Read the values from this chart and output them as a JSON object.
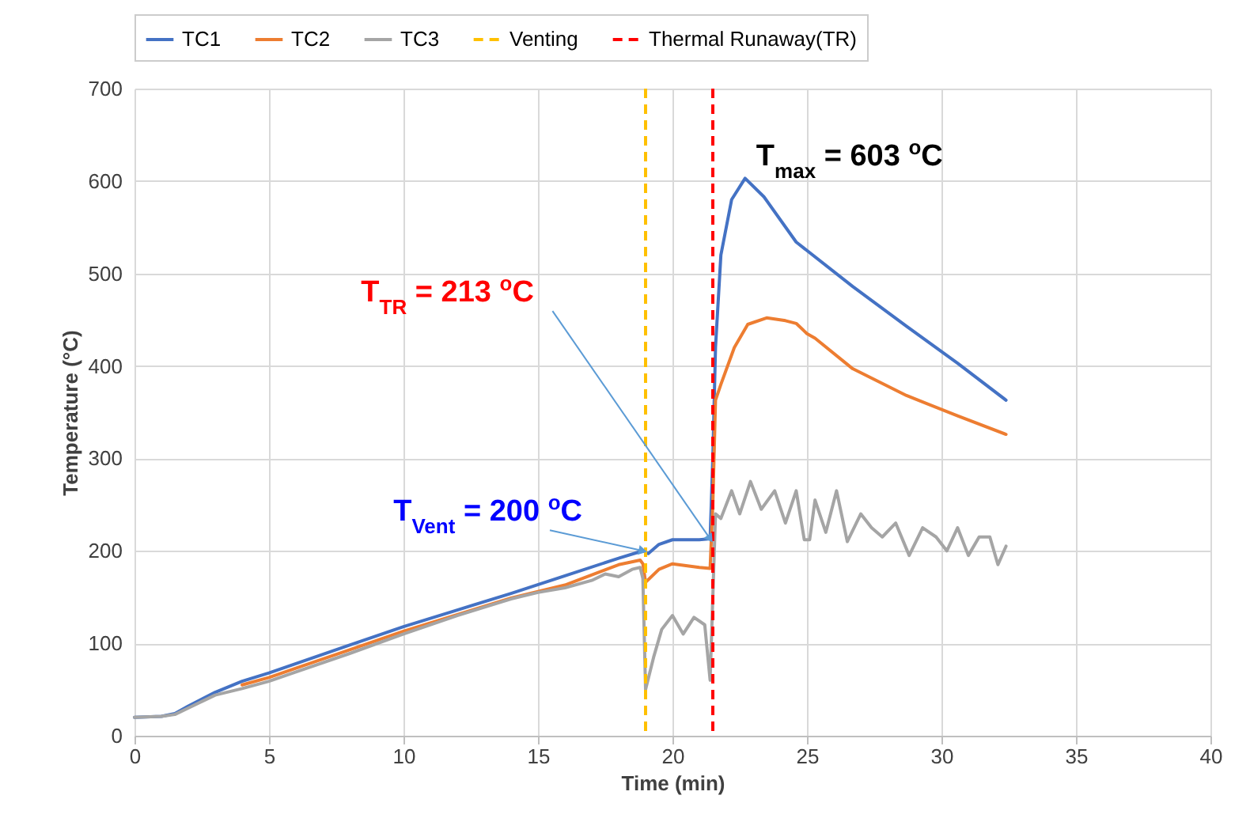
{
  "chart_data": {
    "type": "line",
    "xlabel": "Time (min)",
    "ylabel": "Temperature (°C)",
    "xlim": [
      0,
      40
    ],
    "xticks": [
      0,
      5,
      10,
      15,
      20,
      25,
      30,
      35,
      40
    ],
    "ylim": [
      0,
      700
    ],
    "yticks": [
      0,
      100,
      200,
      300,
      400,
      500,
      600,
      700
    ],
    "grid": true,
    "legend": "top",
    "marker": "none",
    "line_style": "solid",
    "series": [
      {
        "name": "TC1",
        "color": "#4472c4",
        "x": [
          0,
          1,
          1.5,
          2,
          3,
          4,
          5,
          6,
          8,
          10,
          12,
          14,
          16,
          18,
          18.9,
          19.1,
          19.5,
          20,
          21,
          21.4,
          21.5,
          21.6,
          21.8,
          22.2,
          22.7,
          23.4,
          24.6,
          26.7,
          28.7,
          30.6,
          32.4
        ],
        "values": [
          20,
          21,
          24,
          32,
          47,
          59,
          68,
          78,
          98,
          118,
          136,
          154,
          173,
          192,
          200,
          197,
          207,
          212,
          212,
          213,
          300,
          420,
          520,
          580,
          603,
          583,
          534,
          486,
          443,
          403,
          363
        ]
      },
      {
        "name": "TC2",
        "color": "#ed7d31",
        "x": [
          4,
          5,
          6,
          8,
          10,
          12,
          14,
          16,
          18,
          18.8,
          18.9,
          19.0,
          19.5,
          20,
          21,
          21.4,
          21.5,
          21.6,
          21.8,
          22.3,
          22.8,
          23.5,
          24.2,
          24.6,
          25,
          25.3,
          26.7,
          28.7,
          30.6,
          32.4
        ],
        "values": [
          55,
          63,
          73,
          93,
          113,
          131,
          149,
          163,
          185,
          190,
          186,
          166,
          180,
          186,
          182,
          181,
          250,
          363,
          380,
          420,
          445,
          452,
          449,
          446,
          435,
          430,
          397,
          368,
          346,
          326
        ]
      },
      {
        "name": "TC3",
        "color": "#a5a5a5",
        "x": [
          0,
          1,
          1.5,
          2,
          3,
          4,
          5,
          6,
          8,
          10,
          12,
          14,
          15,
          16,
          17,
          17.5,
          18,
          18.5,
          18.8,
          18.9,
          19.0,
          19.3,
          19.6,
          20,
          20.4,
          20.8,
          21.2,
          21.4,
          21.5,
          21.6,
          21.8,
          22.2,
          22.5,
          22.9,
          23.3,
          23.8,
          24.2,
          24.6,
          24.9,
          25.1,
          25.3,
          25.7,
          26.1,
          26.5,
          27,
          27.4,
          27.8,
          28.3,
          28.8,
          29.3,
          29.8,
          30.2,
          30.6,
          31,
          31.4,
          31.8,
          32.1,
          32.4
        ],
        "values": [
          20,
          21,
          23,
          30,
          44,
          51,
          59,
          69,
          89,
          110,
          130,
          148,
          155,
          160,
          168,
          175,
          172,
          180,
          182,
          170,
          50,
          85,
          115,
          130,
          110,
          128,
          120,
          60,
          150,
          240,
          235,
          265,
          240,
          275,
          245,
          265,
          230,
          265,
          212,
          212,
          255,
          220,
          265,
          210,
          240,
          225,
          215,
          230,
          195,
          225,
          215,
          200,
          225,
          195,
          215,
          215,
          185,
          205
        ]
      }
    ],
    "ref_lines": [
      {
        "axis": "x",
        "value": 19,
        "label": "Venting",
        "color": "#ffc000",
        "line_style": "dashed"
      },
      {
        "axis": "x",
        "value": 21.5,
        "label": "Thermal Runaway(TR)",
        "color": "#ff0000",
        "line_style": "dashed"
      }
    ],
    "annotations": [
      {
        "text": "T$_{Vent}$ = 200 $^{o}$C",
        "x": 18.9,
        "y": 200
      },
      {
        "text": "T$_{TR}$ = 213 $^{o}$C",
        "x": 21.4,
        "y": 213
      },
      {
        "text": "T$_{max}$ = 603 $^{o}$C",
        "x": 22.7,
        "y": 603
      }
    ]
  }
}
